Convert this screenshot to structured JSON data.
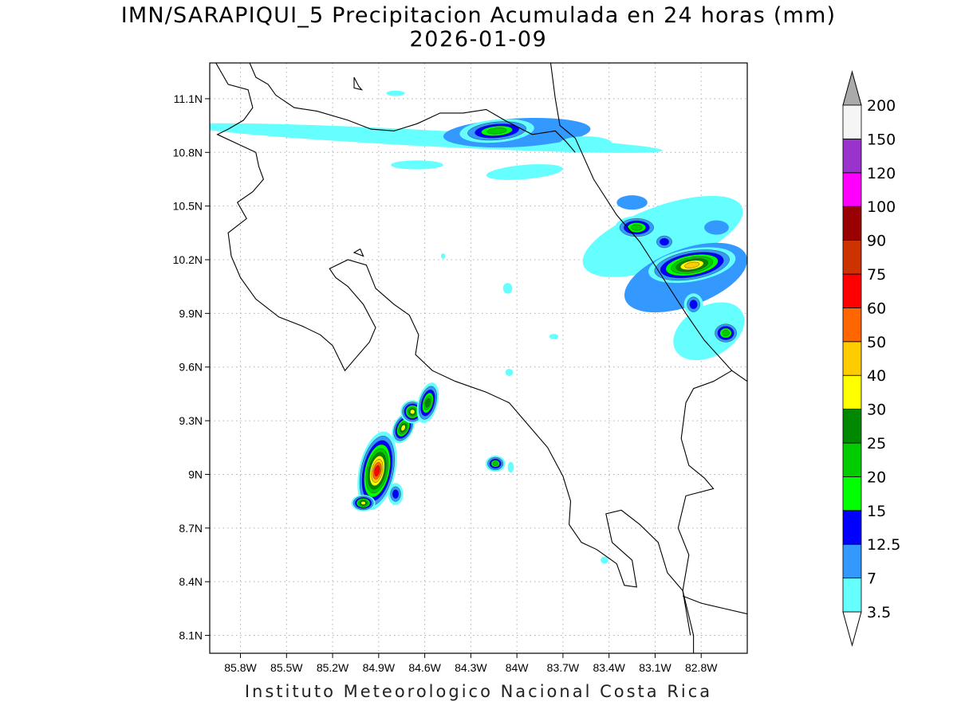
{
  "title": "IMN/SARAPIQUI_5 Precipitacion Acumulada en 24 horas (mm)",
  "date": "2026-01-09",
  "footer": "Instituto Meteorologico Nacional Costa Rica",
  "map": {
    "lon_min": -86.0,
    "lon_max": -82.5,
    "lat_min": 8.0,
    "lat_max": 11.3,
    "x_ticks": [
      {
        "lon": -85.8,
        "label": "85.8W"
      },
      {
        "lon": -85.5,
        "label": "85.5W"
      },
      {
        "lon": -85.2,
        "label": "85.2W"
      },
      {
        "lon": -84.9,
        "label": "84.9W"
      },
      {
        "lon": -84.6,
        "label": "84.6W"
      },
      {
        "lon": -84.3,
        "label": "84.3W"
      },
      {
        "lon": -84.0,
        "label": "84W"
      },
      {
        "lon": -83.7,
        "label": "83.7W"
      },
      {
        "lon": -83.4,
        "label": "83.4W"
      },
      {
        "lon": -83.1,
        "label": "83.1W"
      },
      {
        "lon": -82.8,
        "label": "82.8W"
      }
    ],
    "y_ticks": [
      {
        "lat": 11.1,
        "label": "11.1N"
      },
      {
        "lat": 10.8,
        "label": "10.8N"
      },
      {
        "lat": 10.5,
        "label": "10.5N"
      },
      {
        "lat": 10.2,
        "label": "10.2N"
      },
      {
        "lat": 9.9,
        "label": "9.9N"
      },
      {
        "lat": 9.6,
        "label": "9.6N"
      },
      {
        "lat": 9.3,
        "label": "9.3N"
      },
      {
        "lat": 9.0,
        "label": "9N"
      },
      {
        "lat": 8.7,
        "label": "8.7N"
      },
      {
        "lat": 8.4,
        "label": "8.4N"
      },
      {
        "lat": 8.1,
        "label": "8.1N"
      }
    ],
    "grid": true
  },
  "colorbar": {
    "levels": [
      {
        "label": "3.5",
        "color": "#66ffff"
      },
      {
        "label": "7",
        "color": "#3399ff"
      },
      {
        "label": "12.5",
        "color": "#0000ff"
      },
      {
        "label": "15",
        "color": "#00ff00"
      },
      {
        "label": "20",
        "color": "#00cc00"
      },
      {
        "label": "25",
        "color": "#008800"
      },
      {
        "label": "30",
        "color": "#ffff00"
      },
      {
        "label": "40",
        "color": "#ffcc00"
      },
      {
        "label": "50",
        "color": "#ff6600"
      },
      {
        "label": "60",
        "color": "#ff0000"
      },
      {
        "label": "75",
        "color": "#cc3300"
      },
      {
        "label": "90",
        "color": "#990000"
      },
      {
        "label": "100",
        "color": "#ff00ff"
      },
      {
        "label": "120",
        "color": "#9933cc"
      },
      {
        "label": "150",
        "color": "#f5f5f5"
      },
      {
        "label": "200",
        "color": "#aaaaaa"
      }
    ],
    "under_color": "#ffffff",
    "over_color": "#aaaaaa"
  },
  "precip_cells": [
    {
      "lon": -84.91,
      "lat": 9.02,
      "max": 60,
      "rx": 0.09,
      "ry": 0.17,
      "rot": 12
    },
    {
      "lon": -85.0,
      "lat": 8.84,
      "max": 30,
      "rx": 0.06,
      "ry": 0.035,
      "rot": 0
    },
    {
      "lon": -84.74,
      "lat": 9.26,
      "max": 30,
      "rx": 0.05,
      "ry": 0.07,
      "rot": 25
    },
    {
      "lon": -84.68,
      "lat": 9.35,
      "max": 30,
      "rx": 0.06,
      "ry": 0.05,
      "rot": 0
    },
    {
      "lon": -84.58,
      "lat": 9.4,
      "max": 25,
      "rx": 0.05,
      "ry": 0.09,
      "rot": 15
    },
    {
      "lon": -84.79,
      "lat": 8.89,
      "max": 12.5,
      "rx": 0.04,
      "ry": 0.05,
      "rot": 0
    },
    {
      "lon": -84.14,
      "lat": 9.06,
      "max": 20,
      "rx": 0.05,
      "ry": 0.035,
      "rot": 0
    },
    {
      "lon": -84.13,
      "lat": 10.92,
      "max": 20,
      "rx": 0.19,
      "ry": 0.05,
      "rot": -5
    },
    {
      "lon": -82.86,
      "lat": 10.17,
      "max": 40,
      "rx": 0.22,
      "ry": 0.07,
      "rot": -10
    },
    {
      "lon": -83.22,
      "lat": 10.38,
      "max": 20,
      "rx": 0.11,
      "ry": 0.05,
      "rot": 0
    },
    {
      "lon": -82.64,
      "lat": 9.79,
      "max": 20,
      "rx": 0.07,
      "ry": 0.05,
      "rot": 0
    },
    {
      "lon": -83.04,
      "lat": 10.3,
      "max": 12.5,
      "rx": 0.06,
      "ry": 0.04,
      "rot": 0
    },
    {
      "lon": -82.85,
      "lat": 9.95,
      "max": 12.5,
      "rx": 0.05,
      "ry": 0.05,
      "rot": 0
    }
  ],
  "light_bands": [
    {
      "lon": -84.6,
      "lat": 10.88,
      "rx": 1.55,
      "ry": 0.045,
      "rot": 3,
      "level": 0
    },
    {
      "lon": -84.0,
      "lat": 10.91,
      "rx": 0.48,
      "ry": 0.08,
      "rot": -3,
      "level": 1
    },
    {
      "lon": -83.95,
      "lat": 10.69,
      "rx": 0.25,
      "ry": 0.04,
      "rot": -5,
      "level": 0
    },
    {
      "lon": -83.55,
      "lat": 10.85,
      "rx": 0.17,
      "ry": 0.04,
      "rot": 0,
      "level": 0
    },
    {
      "lon": -83.05,
      "lat": 10.33,
      "rx": 0.55,
      "ry": 0.17,
      "rot": -20,
      "level": 0
    },
    {
      "lon": -82.9,
      "lat": 10.1,
      "rx": 0.42,
      "ry": 0.16,
      "rot": -20,
      "level": 1
    },
    {
      "lon": -82.75,
      "lat": 9.8,
      "rx": 0.25,
      "ry": 0.14,
      "rot": -30,
      "level": 0
    },
    {
      "lon": -83.25,
      "lat": 10.52,
      "rx": 0.1,
      "ry": 0.04,
      "rot": 0,
      "level": 1
    },
    {
      "lon": -82.7,
      "lat": 10.38,
      "rx": 0.08,
      "ry": 0.04,
      "rot": 0,
      "level": 1
    },
    {
      "lon": -84.65,
      "lat": 10.73,
      "rx": 0.17,
      "ry": 0.025,
      "rot": 0,
      "level": 0
    },
    {
      "lon": -85.5,
      "lat": 10.94,
      "rx": 0.03,
      "ry": 0.02,
      "rot": 0,
      "level": 0
    },
    {
      "lon": -84.79,
      "lat": 11.13,
      "rx": 0.06,
      "ry": 0.015,
      "rot": 0,
      "level": 0
    },
    {
      "lon": -84.06,
      "lat": 10.04,
      "rx": 0.03,
      "ry": 0.03,
      "rot": 0,
      "level": 0
    },
    {
      "lon": -83.76,
      "lat": 9.77,
      "rx": 0.03,
      "ry": 0.015,
      "rot": 0,
      "level": 0
    },
    {
      "lon": -84.05,
      "lat": 9.57,
      "rx": 0.025,
      "ry": 0.02,
      "rot": 0,
      "level": 0
    },
    {
      "lon": -83.43,
      "lat": 8.52,
      "rx": 0.025,
      "ry": 0.02,
      "rot": 0,
      "level": 0
    },
    {
      "lon": -84.04,
      "lat": 9.04,
      "rx": 0.02,
      "ry": 0.03,
      "rot": 0,
      "level": 0
    },
    {
      "lon": -84.48,
      "lat": 10.22,
      "rx": 0.015,
      "ry": 0.015,
      "rot": 0,
      "level": 0
    }
  ]
}
